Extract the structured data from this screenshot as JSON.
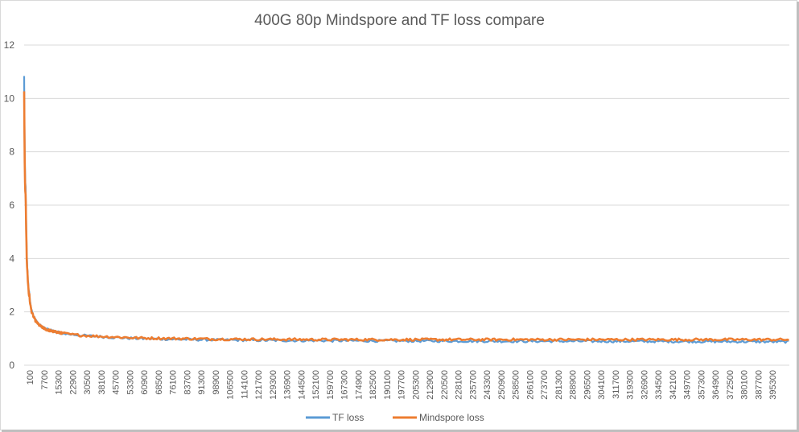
{
  "chart_data": {
    "type": "line",
    "title": "400G 80p Mindspore and TF loss compare",
    "xlabel": "",
    "ylabel": "",
    "ylim": [
      0,
      12
    ],
    "yticks": [
      0,
      2,
      4,
      6,
      8,
      10,
      12
    ],
    "grid": true,
    "legend_position": "bottom",
    "xlim": [
      100,
      400000
    ],
    "x_tick_labels": [
      "100",
      "7700",
      "15300",
      "22900",
      "30500",
      "38100",
      "45700",
      "53300",
      "60900",
      "68500",
      "76100",
      "83700",
      "91300",
      "98900",
      "106500",
      "114100",
      "121700",
      "129300",
      "136900",
      "144500",
      "152100",
      "159700",
      "167300",
      "174900",
      "182500",
      "190100",
      "197700",
      "205300",
      "212900",
      "220500",
      "228100",
      "235700",
      "243300",
      "250900",
      "258500",
      "266100",
      "273700",
      "281300",
      "288900",
      "296500",
      "304100",
      "311700",
      "319300",
      "326900",
      "334500",
      "342100",
      "349700",
      "357300",
      "364900",
      "372500",
      "380100",
      "387700",
      "395300"
    ],
    "series": [
      {
        "name": "TF loss",
        "color": "#5b9bd5",
        "x": [
          100,
          300,
          600,
          900,
          1200,
          1500,
          2000,
          2500,
          3000,
          3500,
          4000,
          5000,
          6000,
          7000,
          8000,
          10000,
          12000,
          15000,
          20000,
          25000,
          30000,
          40000,
          50000,
          60000,
          80000,
          100000,
          130000,
          160000,
          200000,
          250000,
          300000,
          350000,
          400000
        ],
        "y": [
          10.8,
          8.5,
          6.9,
          6.6,
          5.0,
          4.0,
          3.3,
          2.8,
          2.5,
          2.25,
          2.05,
          1.85,
          1.7,
          1.6,
          1.52,
          1.42,
          1.35,
          1.28,
          1.2,
          1.15,
          1.12,
          1.07,
          1.03,
          1.0,
          0.97,
          0.95,
          0.93,
          0.92,
          0.91,
          0.9,
          0.9,
          0.89,
          0.88
        ]
      },
      {
        "name": "Mindspore loss",
        "color": "#ed7d31",
        "x": [
          100,
          300,
          600,
          900,
          1200,
          1500,
          2000,
          2500,
          3000,
          3500,
          4000,
          5000,
          6000,
          7000,
          8000,
          10000,
          12000,
          15000,
          20000,
          25000,
          30000,
          40000,
          50000,
          60000,
          80000,
          100000,
          130000,
          160000,
          200000,
          250000,
          300000,
          350000,
          400000
        ],
        "y": [
          10.2,
          8.2,
          6.7,
          6.4,
          4.9,
          3.9,
          3.2,
          2.75,
          2.45,
          2.2,
          2.0,
          1.82,
          1.67,
          1.58,
          1.5,
          1.4,
          1.33,
          1.27,
          1.2,
          1.15,
          1.12,
          1.08,
          1.05,
          1.02,
          1.0,
          0.98,
          0.97,
          0.96,
          0.96,
          0.96,
          0.96,
          0.96,
          0.96
        ]
      }
    ]
  }
}
